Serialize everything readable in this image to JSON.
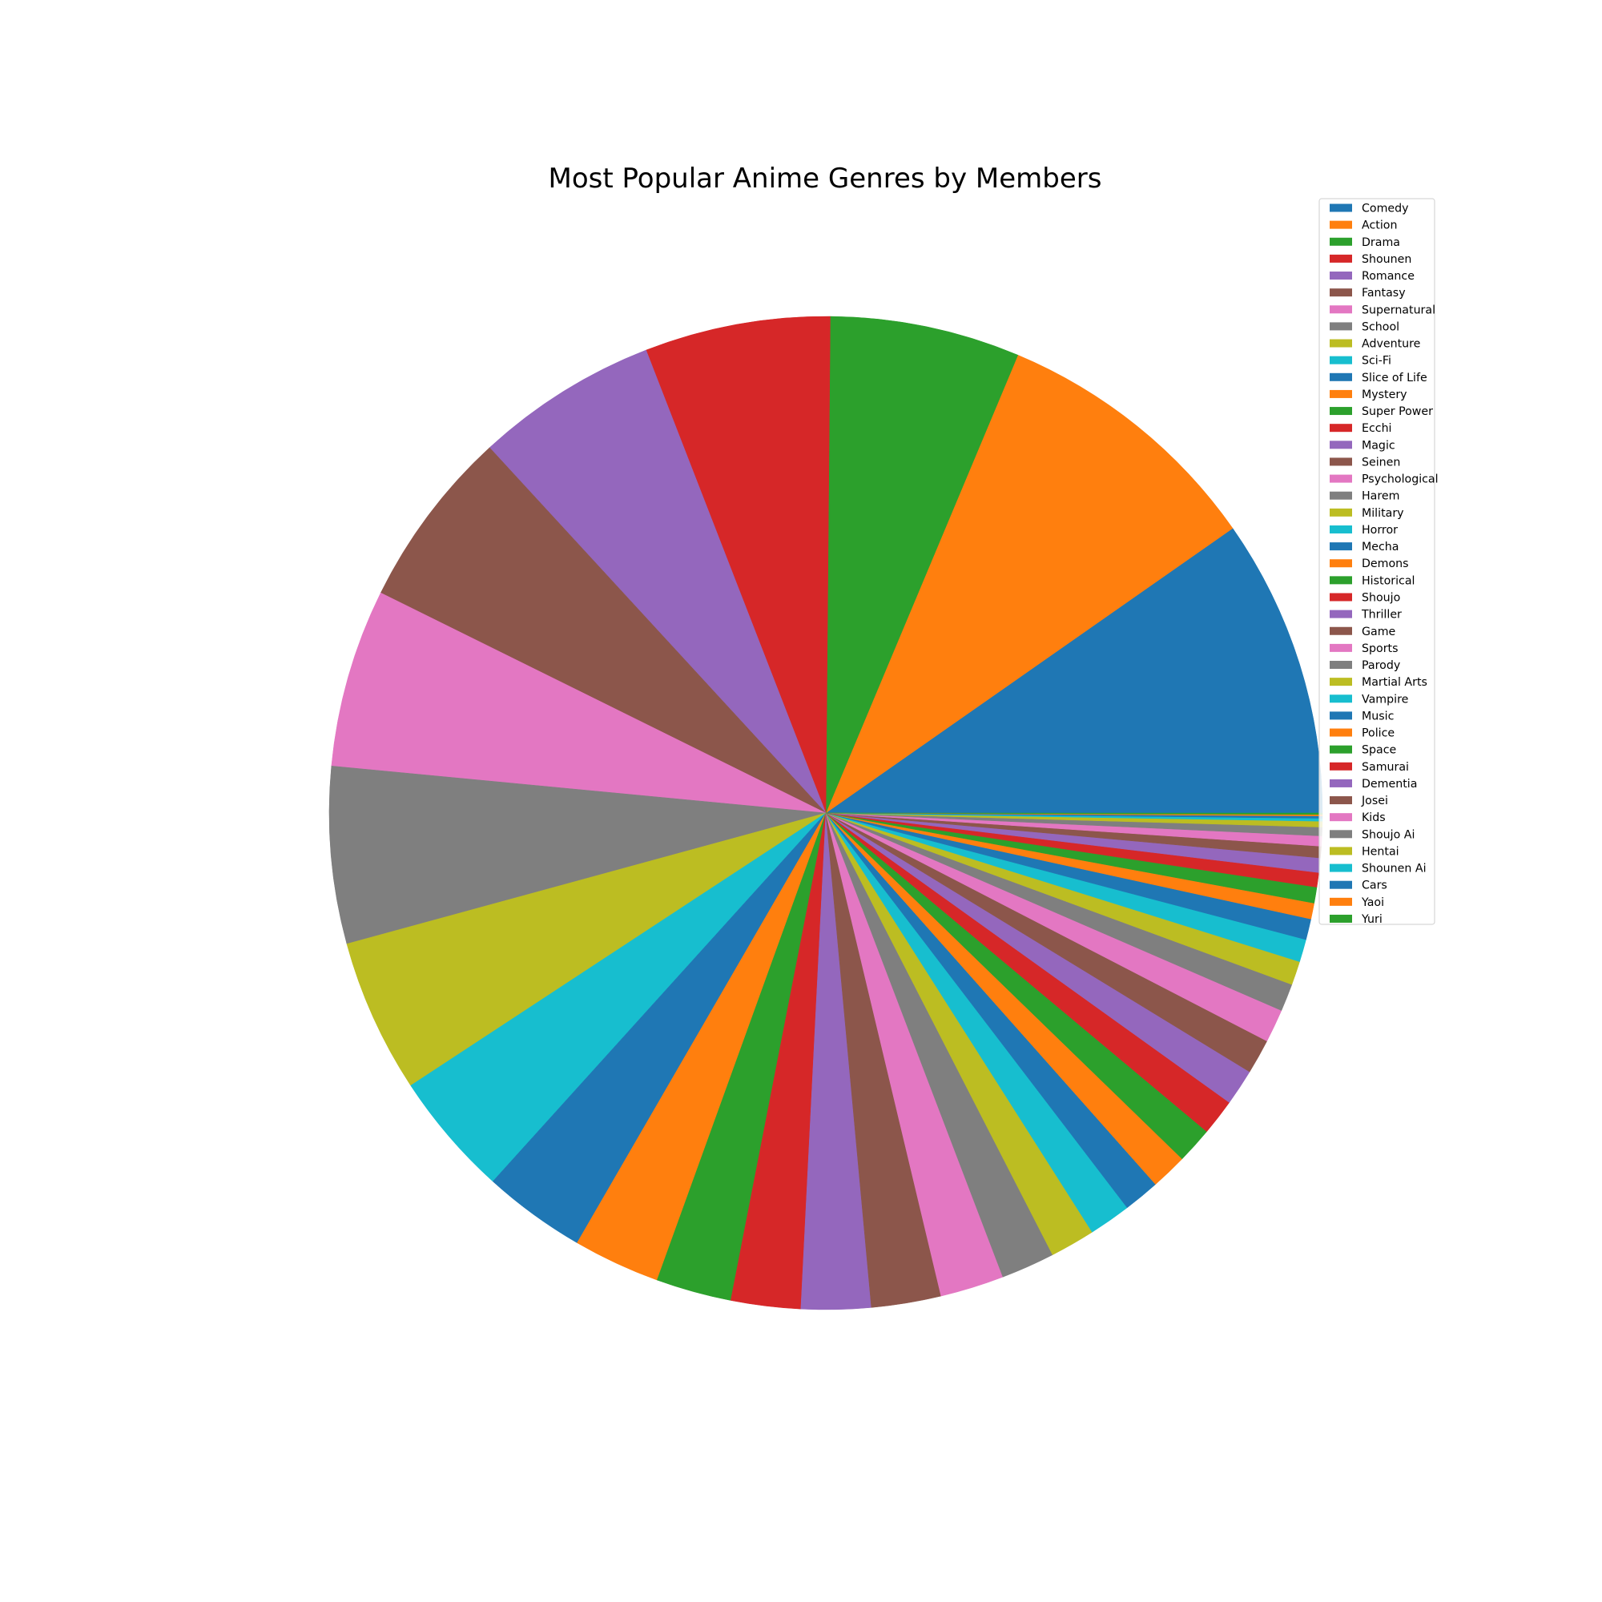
{
  "chart_data": {
    "type": "pie",
    "title": "Most Popular Anime Genres by Members",
    "start_angle_deg": 0,
    "direction": "counterclockwise",
    "legend_position": "upper-right",
    "palette": [
      "#1f77b4",
      "#ff7f0e",
      "#2ca02c",
      "#d62728",
      "#9467bd",
      "#8c564b",
      "#e377c2",
      "#7f7f7f",
      "#bcbd22",
      "#17becf"
    ],
    "categories": [
      "Comedy",
      "Action",
      "Drama",
      "Shounen",
      "Romance",
      "Fantasy",
      "Supernatural",
      "School",
      "Adventure",
      "Sci-Fi",
      "Slice of Life",
      "Mystery",
      "Super Power",
      "Ecchi",
      "Magic",
      "Seinen",
      "Psychological",
      "Harem",
      "Military",
      "Horror",
      "Mecha",
      "Demons",
      "Historical",
      "Shoujo",
      "Thriller",
      "Game",
      "Sports",
      "Parody",
      "Martial Arts",
      "Vampire",
      "Music",
      "Police",
      "Space",
      "Samurai",
      "Dementia",
      "Josei",
      "Kids",
      "Shoujo Ai",
      "Hentai",
      "Shounen Ai",
      "Cars",
      "Yaoi",
      "Yuri"
    ],
    "values": [
      10.3,
      9.5,
      6.55,
      6.4,
      6.3,
      6.2,
      6.15,
      6.1,
      5.3,
      4.3,
      3.55,
      3.0,
      2.6,
      2.4,
      2.4,
      2.4,
      2.2,
      1.85,
      1.55,
      1.45,
      1.25,
      1.25,
      1.25,
      1.25,
      1.25,
      1.2,
      1.15,
      0.95,
      0.82,
      0.78,
      0.72,
      0.55,
      0.55,
      0.5,
      0.5,
      0.4,
      0.35,
      0.3,
      0.2,
      0.1,
      0.08,
      0.05,
      0.05
    ]
  }
}
